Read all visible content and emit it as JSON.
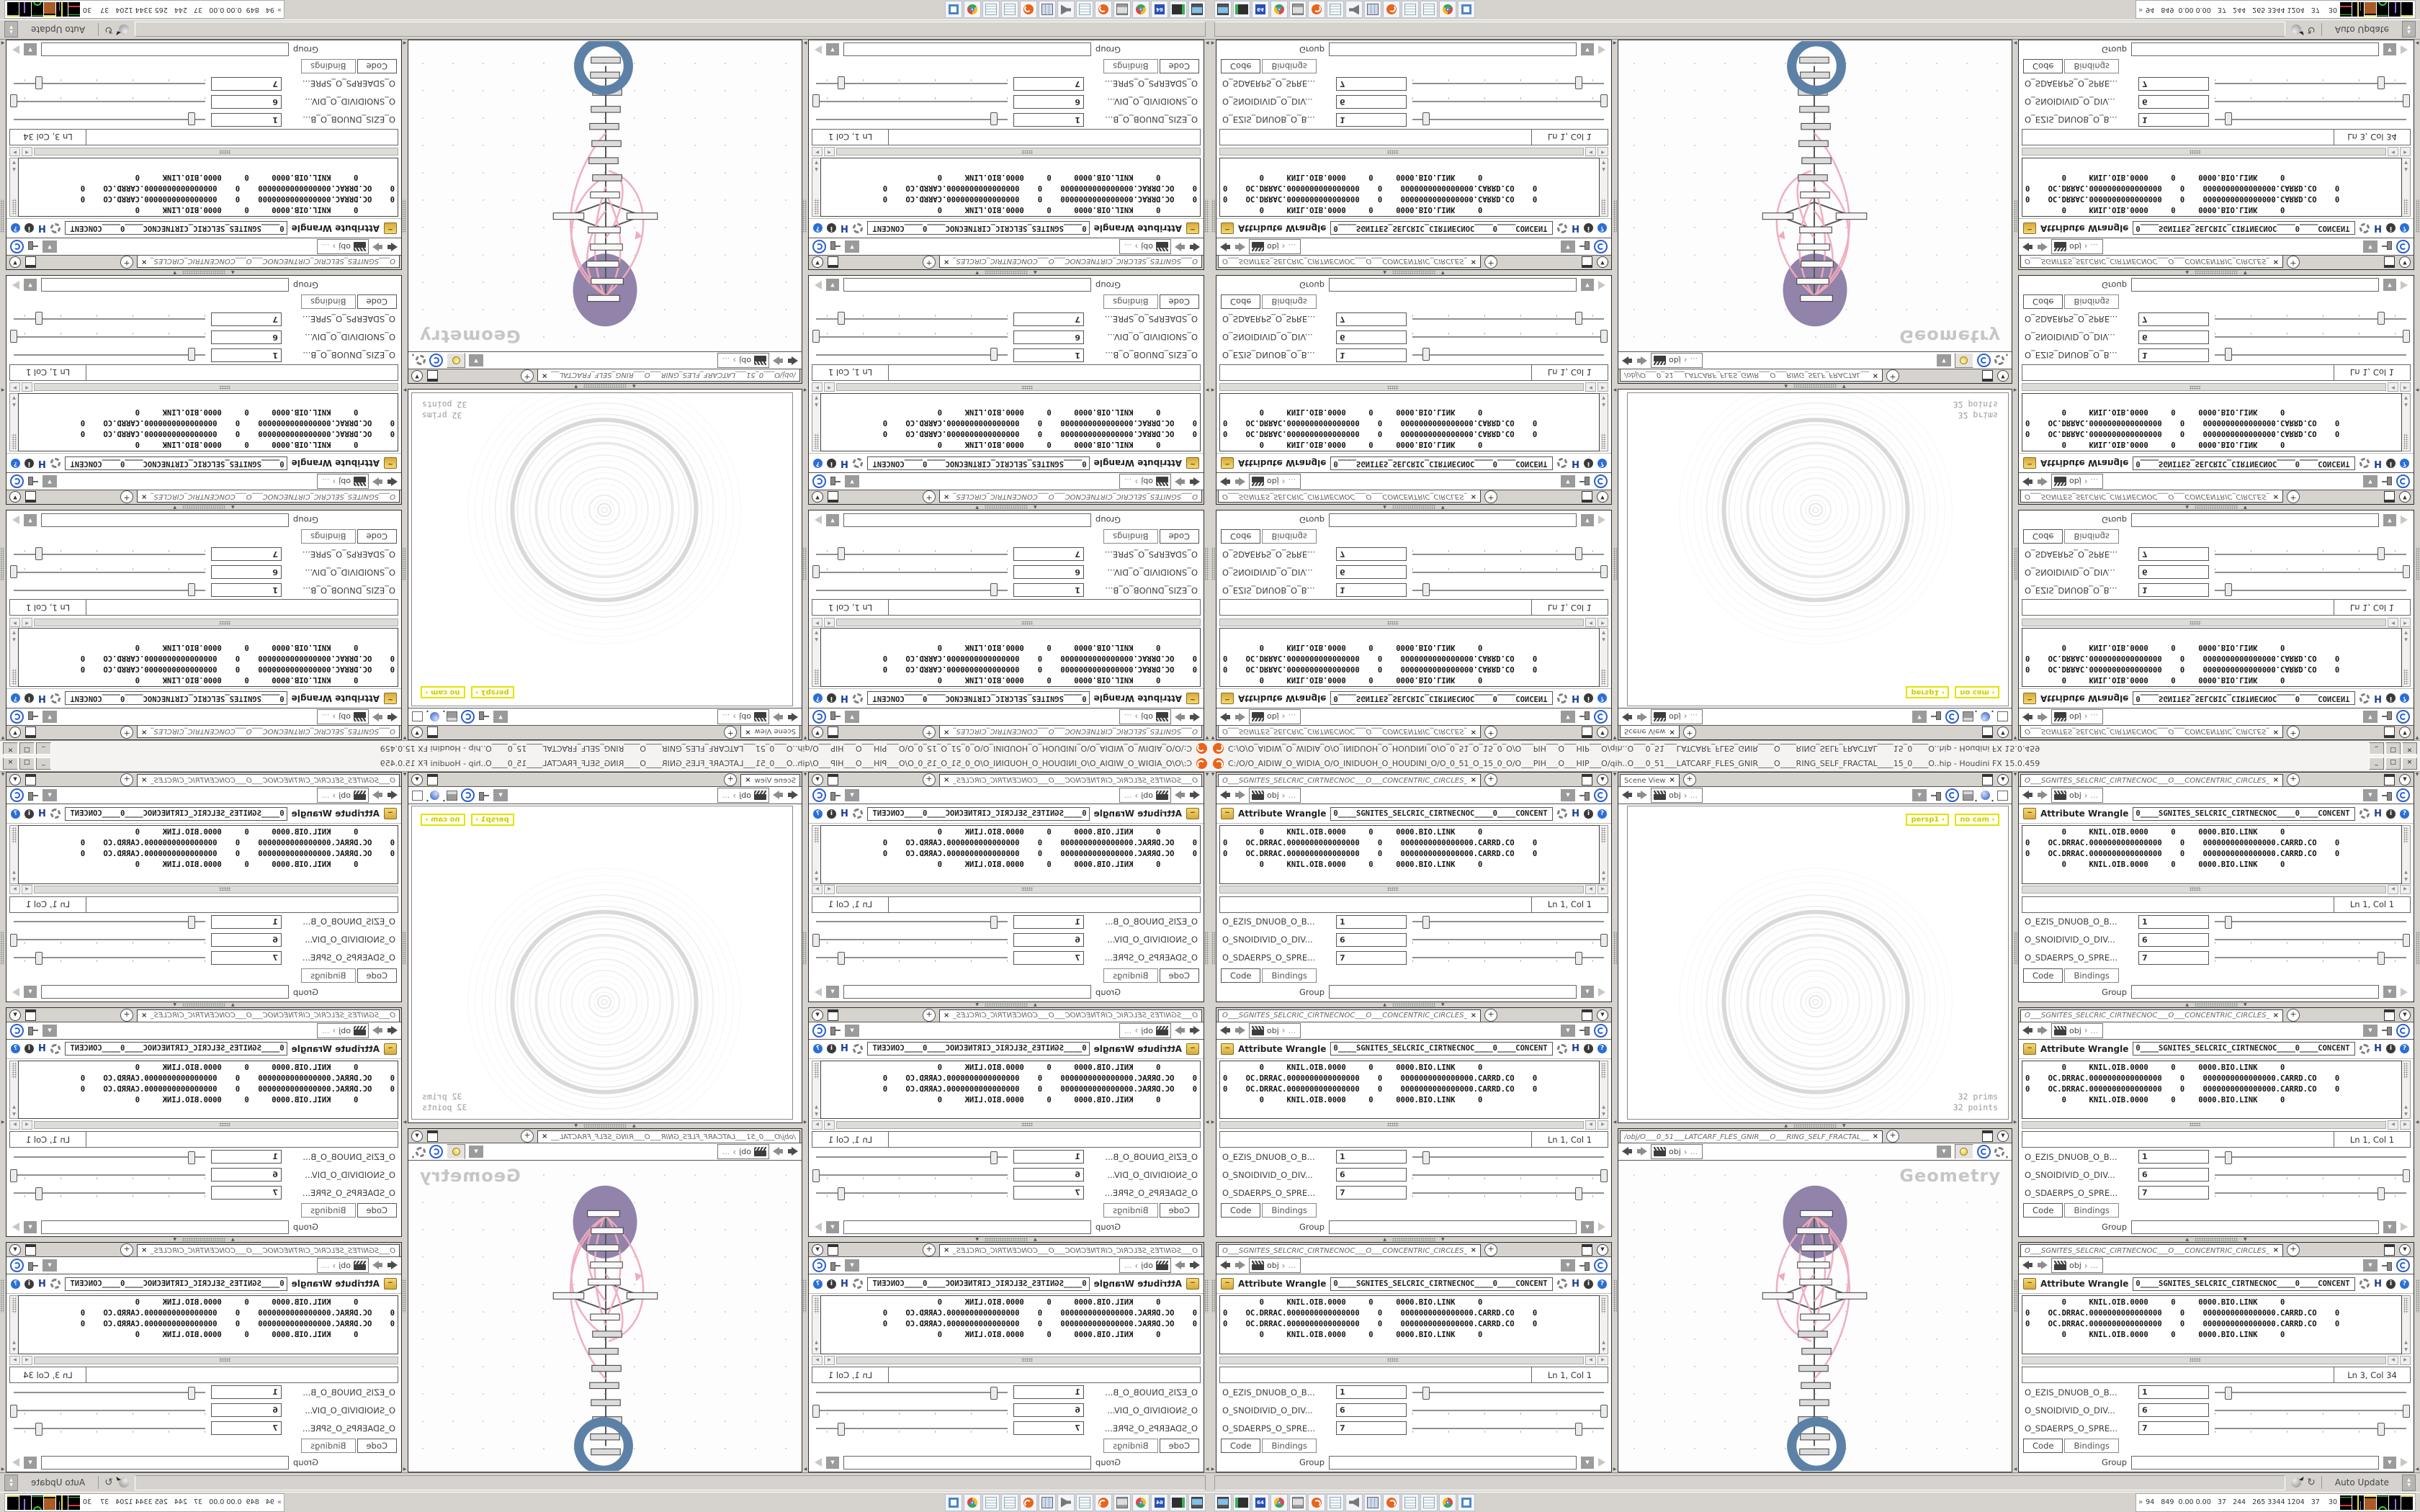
{
  "colors": {
    "houdini_orange": "#e8641b",
    "wire_pink": "#f0abbc",
    "disc_purple": "#9183aa",
    "ring_blue": "#5d81a6",
    "viewport_chip_yellow": "#e3e300",
    "window_gray": "#d6d3ce"
  },
  "window": {
    "title": "C:/O/O_AIDIW_O_WIDIA_O/O_INIDUOH_O_HOUDINI_O/O_0_51_O_15_0_O/O___PIH___O___HIP___O/qih..O___0_51___LATCARF_FLES_GNIR____O____RING_SELF_FRACTAL____15_0____O..hip - Houdini FX 15.0.459",
    "buttons": {
      "minimize": "_",
      "restore": "□",
      "close": "×"
    }
  },
  "pane_common": {
    "path_obj": "obj",
    "path_more": "...",
    "new_tab": "+",
    "menu_arrow": "▼"
  },
  "param_pane": {
    "tab": "O___SGNITES_SELCRIC_CIRTNECNOC___O___CONCENTRIC_CIRCLES_SETINGS___O",
    "node_type": "Attribute Wrangle",
    "node_name": "0____SGNITES_SELCRIC_CIRTNECNOC____0____CONCENT",
    "h_badge": "H",
    "info_glyph": "i",
    "help_glyph": "?",
    "code_lines": [
      "        0     KNIL.OIB.0000     0     0000.BIO.LINK     0",
      "0    OC.DRRAC.0000000000000000    0    0000000000000000.CARRD.CO    0",
      "0    OC.DRRAC.0000000000000000    0    0000000000000000.CARRD.CO    0",
      "        0     KNIL.OIB.0000     0     0000.BIO.LINK     0"
    ],
    "rows": [
      {
        "label": "O_EZIS_DNUOB_O_B...",
        "value": "1",
        "slider_pct": 7
      },
      {
        "label": "O_SNOIDIVID_O_DIV...",
        "value": "6",
        "slider_pct": 100
      },
      {
        "label": "O_SDAERPS_O_SPRE...",
        "value": "7",
        "slider_pct": 87
      }
    ],
    "tabs": [
      "Code",
      "Bindings"
    ],
    "group_label": "Group",
    "blocks": [
      {
        "ln": "Ln 1, Col 1"
      },
      {
        "ln": "Ln 1, Col 1"
      },
      {
        "ln": "Ln 1, Col 1"
      },
      {
        "ln": "Ln 1, Col 1"
      },
      {
        "ln": "Ln 1, Col 1"
      },
      {
        "ln": "Ln 3, Col 34"
      }
    ]
  },
  "scene_pane": {
    "tab": "Scene View",
    "camera_chip": "persp1",
    "cam_menu_chip": "no cam",
    "stats_prims": "32  prims",
    "stats_points": "32 points"
  },
  "network_pane": {
    "tab": "/obj/O___0_51___LATCARF_FLES_GNIR___O___RING_SELF_FRACTAL___15_0_...",
    "watermark": "Geometry"
  },
  "statusbar": {
    "auto_update": "Auto Update"
  },
  "taskbar": {
    "tray_chevron": "»",
    "tray_numbers": "94   849  0.00 0.00   37   244   265 3344 1204   37    30",
    "icons": [
      "my-computer",
      "card-reader",
      "floppy-64",
      "chrome",
      "display",
      "houdini",
      "notepad",
      "speaker",
      "calculator",
      "houdini",
      "notepad",
      "notepad",
      "chrome",
      "image-viewer"
    ]
  }
}
